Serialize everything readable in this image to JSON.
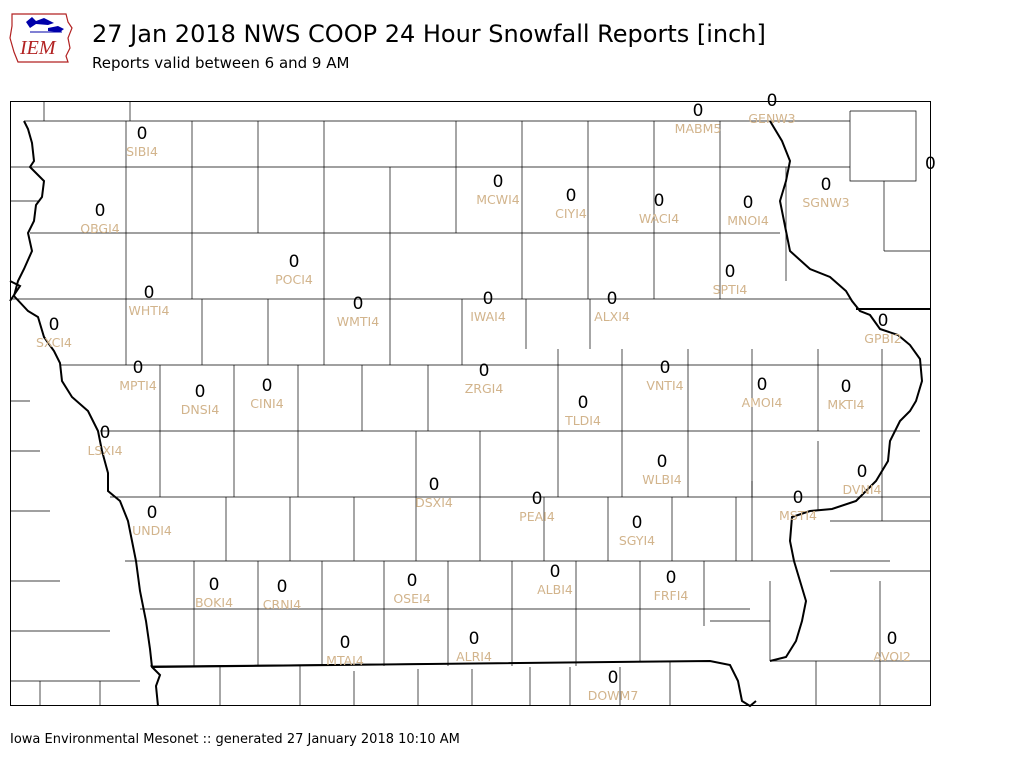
{
  "logo": {
    "text": "IEM",
    "colors": {
      "text": "#b22222",
      "bird": "#0000aa"
    }
  },
  "header": {
    "title": "27 Jan 2018 NWS COOP 24 Hour Snowfall Reports [inch]",
    "subtitle": "Reports valid between 6 and 9 AM"
  },
  "footer": {
    "text": "Iowa Environmental Mesonet :: generated 27 January 2018 10:10 AM"
  },
  "colors": {
    "value": "#000000",
    "station_id": "#d2b48c",
    "county_lines": "#000000"
  },
  "stations": [
    {
      "id": "SIBI4",
      "value": "0"
    },
    {
      "id": "MABM5",
      "value": "0"
    },
    {
      "id": "GENW3",
      "value": "0"
    },
    {
      "id": "OBGI4",
      "value": "0"
    },
    {
      "id": "MCWI4",
      "value": "0"
    },
    {
      "id": "CIYI4",
      "value": "0"
    },
    {
      "id": "WACI4",
      "value": "0"
    },
    {
      "id": "MNOI4",
      "value": "0"
    },
    {
      "id": "SGNW3",
      "value": "0"
    },
    {
      "id": "POCI4",
      "value": "0"
    },
    {
      "id": "SPTI4",
      "value": "0"
    },
    {
      "id": "WHTI4",
      "value": "0"
    },
    {
      "id": "WMTI4",
      "value": "0"
    },
    {
      "id": "IWAI4",
      "value": "0"
    },
    {
      "id": "ALXI4",
      "value": "0"
    },
    {
      "id": "SXCI4",
      "value": "0"
    },
    {
      "id": "GPBI2",
      "value": "0"
    },
    {
      "id": "MPTI4",
      "value": "0"
    },
    {
      "id": "DNSI4",
      "value": "0"
    },
    {
      "id": "CINI4",
      "value": "0"
    },
    {
      "id": "ZRGI4",
      "value": "0"
    },
    {
      "id": "VNTI4",
      "value": "0"
    },
    {
      "id": "AMOI4",
      "value": "0"
    },
    {
      "id": "MKTI4",
      "value": "0"
    },
    {
      "id": "TLDI4",
      "value": "0"
    },
    {
      "id": "LSXI4",
      "value": "0"
    },
    {
      "id": "WLBI4",
      "value": "0"
    },
    {
      "id": "DVNI4",
      "value": "0"
    },
    {
      "id": "DSXI4",
      "value": "0"
    },
    {
      "id": "PEAI4",
      "value": "0"
    },
    {
      "id": "MSTI4",
      "value": "0"
    },
    {
      "id": "UNDI4",
      "value": "0"
    },
    {
      "id": "SGYI4",
      "value": "0"
    },
    {
      "id": "ALBI4",
      "value": "0"
    },
    {
      "id": "BOKI4",
      "value": "0"
    },
    {
      "id": "CRNI4",
      "value": "0"
    },
    {
      "id": "OSEI4",
      "value": "0"
    },
    {
      "id": "FRFI4",
      "value": "0"
    },
    {
      "id": "AVOI2",
      "value": "0"
    },
    {
      "id": "MTAI4",
      "value": "0"
    },
    {
      "id": "ALRI4",
      "value": "0"
    },
    {
      "id": "DOWM7",
      "value": "0"
    }
  ],
  "edge_values": [
    "0"
  ]
}
